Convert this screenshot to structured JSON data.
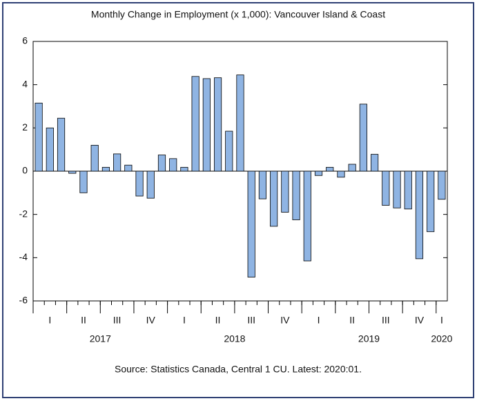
{
  "chart_data": {
    "type": "bar",
    "title": "Monthly Change in Employment (x 1,000): Vancouver Island & Coast",
    "source": "Source: Statistics Canada, Central 1 CU. Latest: 2020:01.",
    "categories": [
      null,
      null,
      null,
      null,
      null,
      null,
      null,
      null,
      null,
      null,
      null,
      null,
      null,
      null,
      null,
      null,
      null,
      null,
      null,
      null,
      null,
      null,
      null,
      null,
      null,
      null,
      null,
      null,
      null,
      null,
      null,
      null,
      null,
      null,
      null,
      null,
      null
    ],
    "values": [
      3.15,
      2.0,
      2.45,
      -0.1,
      -1.0,
      1.2,
      0.18,
      0.8,
      0.28,
      -1.15,
      -1.25,
      0.75,
      0.58,
      0.18,
      4.38,
      4.28,
      4.32,
      1.85,
      4.45,
      -4.9,
      -1.28,
      -2.55,
      -1.9,
      -2.25,
      -4.15,
      -0.2,
      0.18,
      -0.28,
      0.32,
      3.1,
      0.78,
      -1.58,
      -1.7,
      -1.75,
      -4.05,
      -2.8,
      -1.3
    ],
    "quarters": [
      "I",
      "II",
      "III",
      "IV",
      "I",
      "II",
      "III",
      "IV",
      "I",
      "II",
      "III",
      "IV",
      "I"
    ],
    "years": [
      "2017",
      "2018",
      "2019",
      "2020"
    ],
    "color": "#8fb4e3",
    "ylim": [
      -6,
      6
    ],
    "yticks": [
      -6,
      -4,
      -2,
      0,
      2,
      4,
      6
    ],
    "grid": false
  }
}
